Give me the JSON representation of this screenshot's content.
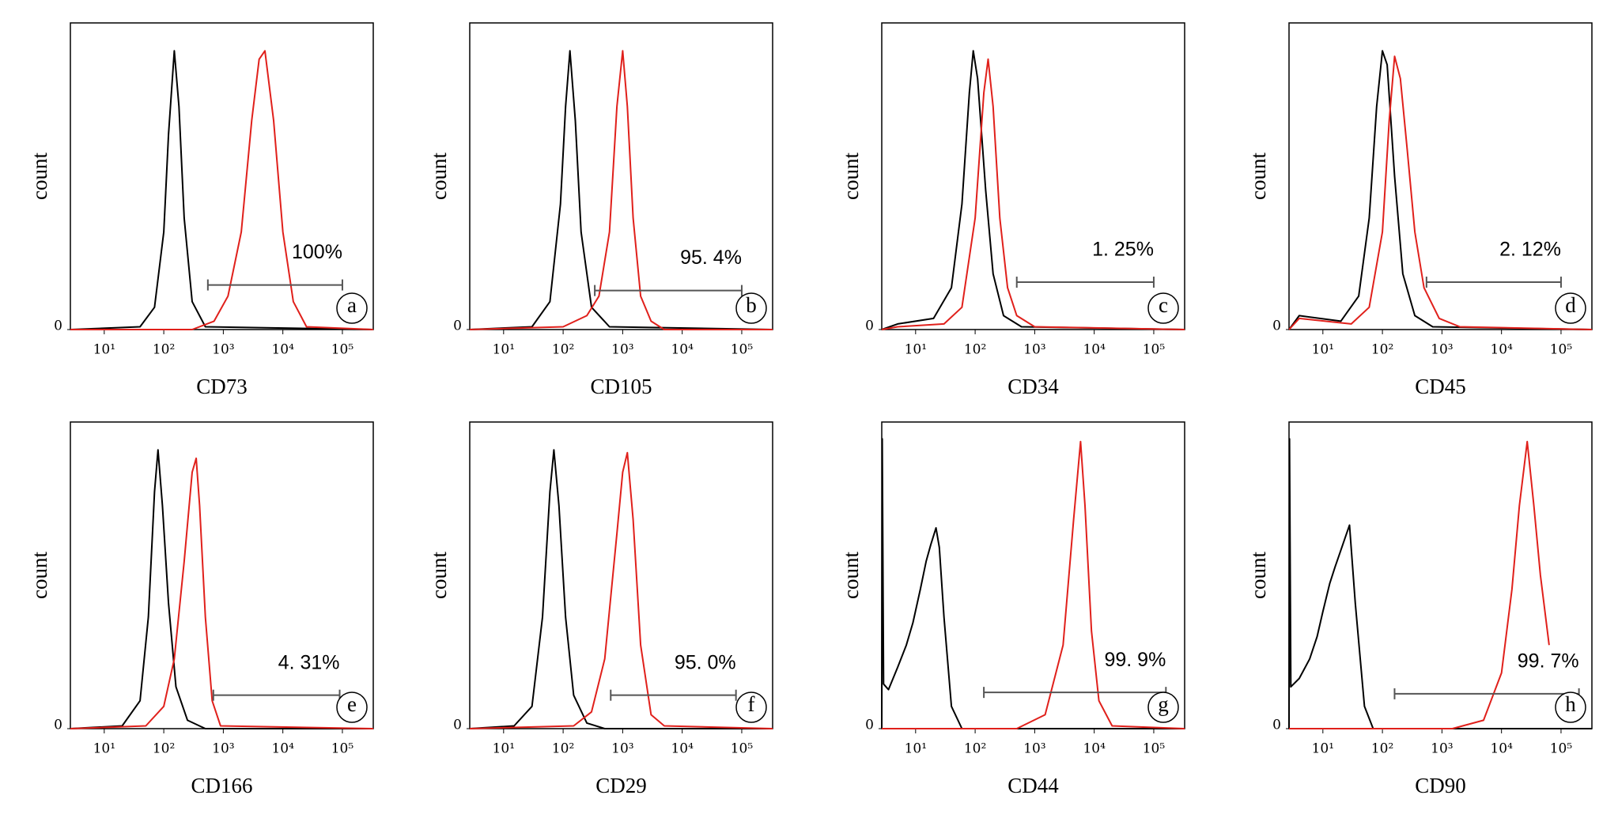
{
  "chart_data": [
    {
      "type": "line",
      "xlabel": "CD73",
      "ylabel": "count",
      "xscale": "log",
      "xlim": [
        2.7,
        330000
      ],
      "ylim": [
        0,
        110
      ],
      "xticks": [
        {
          "value": 10,
          "label": "10¹"
        },
        {
          "value": 100,
          "label": "10²"
        },
        {
          "value": 1000,
          "label": "10³"
        },
        {
          "value": 10000,
          "label": "10⁴"
        },
        {
          "value": 100000,
          "label": "10⁵"
        }
      ],
      "yticks": [
        0
      ],
      "series": [
        {
          "color": "#000000",
          "x": [
            2.7,
            40,
            70,
            100,
            120,
            150,
            180,
            220,
            300,
            500,
            330000
          ],
          "values": [
            0,
            1,
            8,
            35,
            70,
            100,
            80,
            40,
            10,
            1,
            0
          ]
        },
        {
          "color": "#e0201b",
          "x": [
            2.7,
            300,
            700,
            1200,
            2000,
            3000,
            4000,
            5000,
            7000,
            10000,
            15000,
            25000,
            330000
          ],
          "values": [
            0,
            0,
            3,
            12,
            35,
            75,
            97,
            100,
            75,
            35,
            10,
            1,
            0
          ]
        }
      ],
      "gate": {
        "label": "100%",
        "range": [
          550,
          100000
        ],
        "level": 16
      },
      "panel_label": "a"
    },
    {
      "type": "line",
      "xlabel": "CD105",
      "ylabel": "count",
      "xscale": "log",
      "xlim": [
        2.7,
        330000
      ],
      "ylim": [
        0,
        110
      ],
      "xticks": [
        {
          "value": 10,
          "label": "10¹"
        },
        {
          "value": 100,
          "label": "10²"
        },
        {
          "value": 1000,
          "label": "10³"
        },
        {
          "value": 10000,
          "label": "10⁴"
        },
        {
          "value": 100000,
          "label": "10⁵"
        }
      ],
      "yticks": [
        0
      ],
      "series": [
        {
          "color": "#000000",
          "x": [
            2.7,
            30,
            60,
            90,
            110,
            130,
            160,
            200,
            300,
            600,
            330000
          ],
          "values": [
            0,
            1,
            10,
            45,
            80,
            100,
            75,
            35,
            8,
            1,
            0
          ]
        },
        {
          "color": "#e0201b",
          "x": [
            2.7,
            100,
            250,
            400,
            600,
            800,
            1000,
            1200,
            1500,
            2000,
            3000,
            5000,
            330000
          ],
          "values": [
            0,
            1,
            5,
            12,
            35,
            80,
            100,
            80,
            40,
            12,
            3,
            0,
            0
          ]
        }
      ],
      "gate": {
        "label": "95. 4%",
        "range": [
          340,
          100000
        ],
        "level": 14
      },
      "panel_label": "b"
    },
    {
      "type": "line",
      "xlabel": "CD34",
      "ylabel": "count",
      "xscale": "log",
      "xlim": [
        2.7,
        330000
      ],
      "ylim": [
        0,
        110
      ],
      "xticks": [
        {
          "value": 10,
          "label": "10¹"
        },
        {
          "value": 100,
          "label": "10²"
        },
        {
          "value": 1000,
          "label": "10³"
        },
        {
          "value": 10000,
          "label": "10⁴"
        },
        {
          "value": 100000,
          "label": "10⁵"
        }
      ],
      "yticks": [
        0
      ],
      "series": [
        {
          "color": "#000000",
          "x": [
            2.7,
            5,
            20,
            40,
            60,
            80,
            93,
            110,
            150,
            200,
            300,
            600,
            330000
          ],
          "values": [
            0,
            2,
            4,
            15,
            45,
            85,
            100,
            90,
            50,
            20,
            5,
            1,
            0
          ]
        },
        {
          "color": "#e0201b",
          "x": [
            2.7,
            5,
            30,
            60,
            100,
            140,
            165,
            200,
            260,
            350,
            500,
            1000,
            330000
          ],
          "values": [
            0,
            1,
            2,
            8,
            40,
            85,
            97,
            80,
            40,
            15,
            5,
            1,
            0
          ]
        }
      ],
      "gate": {
        "label": "1. 25%",
        "range": [
          500,
          100000
        ],
        "level": 17
      },
      "panel_label": "c"
    },
    {
      "type": "line",
      "xlabel": "CD45",
      "ylabel": "count",
      "xscale": "log",
      "xlim": [
        2.7,
        330000
      ],
      "ylim": [
        0,
        110
      ],
      "xticks": [
        {
          "value": 10,
          "label": "10¹"
        },
        {
          "value": 100,
          "label": "10²"
        },
        {
          "value": 1000,
          "label": "10³"
        },
        {
          "value": 10000,
          "label": "10⁴"
        },
        {
          "value": 100000,
          "label": "10⁵"
        }
      ],
      "yticks": [
        0
      ],
      "series": [
        {
          "color": "#000000",
          "x": [
            2.7,
            4,
            20,
            40,
            60,
            80,
            100,
            120,
            160,
            220,
            350,
            700,
            330000
          ],
          "values": [
            0,
            5,
            3,
            12,
            40,
            80,
            100,
            95,
            55,
            20,
            5,
            1,
            0
          ]
        },
        {
          "color": "#e0201b",
          "x": [
            2.7,
            4,
            30,
            60,
            100,
            130,
            160,
            200,
            260,
            350,
            500,
            900,
            2000,
            330000
          ],
          "values": [
            0,
            4,
            2,
            8,
            35,
            75,
            98,
            90,
            65,
            35,
            15,
            4,
            1,
            0
          ]
        }
      ],
      "gate": {
        "label": "2. 12%",
        "range": [
          550,
          100000
        ],
        "level": 17
      },
      "panel_label": "d"
    },
    {
      "type": "line",
      "xlabel": "CD166",
      "ylabel": "count",
      "xscale": "log",
      "xlim": [
        2.7,
        330000
      ],
      "ylim": [
        0,
        110
      ],
      "xticks": [
        {
          "value": 10,
          "label": "10¹"
        },
        {
          "value": 100,
          "label": "10²"
        },
        {
          "value": 1000,
          "label": "10³"
        },
        {
          "value": 10000,
          "label": "10⁴"
        },
        {
          "value": 100000,
          "label": "10⁵"
        }
      ],
      "yticks": [
        0
      ],
      "series": [
        {
          "color": "#000000",
          "x": [
            2.7,
            20,
            40,
            55,
            70,
            80,
            95,
            120,
            160,
            250,
            500,
            330000
          ],
          "values": [
            0,
            1,
            10,
            40,
            85,
            100,
            80,
            45,
            15,
            3,
            0,
            0
          ]
        },
        {
          "color": "#e0201b",
          "x": [
            2.7,
            50,
            100,
            150,
            220,
            300,
            350,
            400,
            500,
            650,
            900,
            330000
          ],
          "values": [
            0,
            1,
            8,
            25,
            60,
            92,
            97,
            80,
            40,
            10,
            1,
            0
          ]
        }
      ],
      "gate": {
        "label": "4. 31%",
        "range": [
          680,
          90000
        ],
        "level": 12
      },
      "panel_label": "e"
    },
    {
      "type": "line",
      "xlabel": "CD29",
      "ylabel": "count",
      "xscale": "log",
      "xlim": [
        2.7,
        330000
      ],
      "ylim": [
        0,
        110
      ],
      "xticks": [
        {
          "value": 10,
          "label": "10¹"
        },
        {
          "value": 100,
          "label": "10²"
        },
        {
          "value": 1000,
          "label": "10³"
        },
        {
          "value": 10000,
          "label": "10⁴"
        },
        {
          "value": 100000,
          "label": "10⁵"
        }
      ],
      "yticks": [
        0
      ],
      "series": [
        {
          "color": "#000000",
          "x": [
            2.7,
            15,
            30,
            45,
            60,
            70,
            85,
            110,
            150,
            250,
            500,
            330000
          ],
          "values": [
            0,
            1,
            8,
            40,
            85,
            100,
            80,
            40,
            12,
            2,
            0,
            0
          ]
        },
        {
          "color": "#e0201b",
          "x": [
            2.7,
            150,
            300,
            500,
            800,
            1000,
            1200,
            1500,
            2000,
            3000,
            5000,
            330000
          ],
          "values": [
            0,
            1,
            6,
            25,
            70,
            92,
            99,
            75,
            30,
            5,
            1,
            0
          ]
        }
      ],
      "gate": {
        "label": "95. 0%",
        "range": [
          630,
          80000
        ],
        "level": 12
      },
      "panel_label": "f"
    },
    {
      "type": "line",
      "xlabel": "CD44",
      "ylabel": "count",
      "xscale": "log",
      "xlim": [
        2.7,
        330000
      ],
      "ylim": [
        0,
        110
      ],
      "xticks": [
        {
          "value": 10,
          "label": "10¹"
        },
        {
          "value": 100,
          "label": "10²"
        },
        {
          "value": 1000,
          "label": "10³"
        },
        {
          "value": 10000,
          "label": "10⁴"
        },
        {
          "value": 100000,
          "label": "10⁵"
        }
      ],
      "yticks": [
        0
      ],
      "series": [
        {
          "color": "#000000",
          "x": [
            2.7,
            2.75,
            2.9,
            3.5,
            5,
            7,
            9,
            12,
            15,
            18,
            22,
            25,
            30,
            40,
            60,
            330000
          ],
          "values": [
            0,
            104,
            16,
            14,
            22,
            30,
            38,
            50,
            60,
            66,
            72,
            65,
            40,
            8,
            0,
            0
          ]
        },
        {
          "color": "#e0201b",
          "x": [
            2.7,
            500,
            1500,
            3000,
            4500,
            5900,
            7000,
            9000,
            12000,
            20000,
            330000
          ],
          "values": [
            0,
            0,
            5,
            30,
            75,
            103,
            80,
            35,
            10,
            1,
            0
          ]
        }
      ],
      "gate": {
        "label": "99. 9%",
        "range": [
          140,
          160000
        ],
        "level": 13
      },
      "panel_label": "g"
    },
    {
      "type": "line",
      "xlabel": "CD90",
      "ylabel": "count",
      "xscale": "log",
      "xlim": [
        2.7,
        330000
      ],
      "ylim": [
        0,
        110
      ],
      "xticks": [
        {
          "value": 10,
          "label": "10¹"
        },
        {
          "value": 100,
          "label": "10²"
        },
        {
          "value": 1000,
          "label": "10³"
        },
        {
          "value": 10000,
          "label": "10⁴"
        },
        {
          "value": 100000,
          "label": "10⁵"
        }
      ],
      "yticks": [
        0
      ],
      "series": [
        {
          "color": "#000000",
          "x": [
            2.7,
            2.75,
            2.9,
            4,
            6,
            8,
            10,
            13,
            16,
            20,
            25,
            28,
            35,
            50,
            70,
            330000
          ],
          "values": [
            0,
            104,
            15,
            18,
            25,
            33,
            42,
            52,
            58,
            64,
            70,
            73,
            45,
            8,
            0,
            0
          ]
        },
        {
          "color": "#e0201b",
          "x": [
            2.7,
            1500,
            5000,
            10000,
            15000,
            20000,
            27000,
            35000,
            45000,
            63000
          ],
          "values": [
            0,
            0,
            3,
            20,
            50,
            80,
            103,
            80,
            55,
            30
          ]
        }
      ],
      "gate": {
        "label": "99. 7%",
        "range": [
          160,
          200000
        ],
        "level": 12.5
      },
      "panel_label": "h"
    }
  ]
}
